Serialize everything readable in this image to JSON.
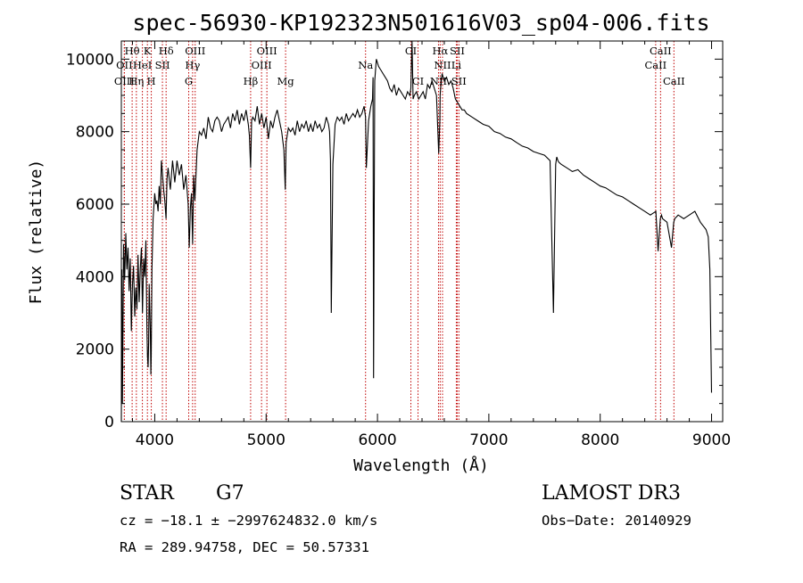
{
  "chart_data": {
    "type": "line",
    "title": "spec-56930-KP192323N501616V03_sp04-006.fits",
    "xlabel": "Wavelength (Å)",
    "ylabel": "Flux (relative)",
    "xlim": [
      3700,
      9100
    ],
    "ylim": [
      0,
      10500
    ],
    "xticks": [
      4000,
      5000,
      6000,
      7000,
      8000,
      9000
    ],
    "yticks": [
      0,
      2000,
      4000,
      6000,
      8000,
      10000
    ],
    "grid": false,
    "series": [
      {
        "x": [
          3700,
          3705,
          3710,
          3715,
          3720,
          3730,
          3740,
          3750,
          3760,
          3770,
          3780,
          3790,
          3800,
          3810,
          3820,
          3830,
          3840,
          3850,
          3860,
          3870,
          3880,
          3890,
          3900,
          3910,
          3920,
          3930,
          3935,
          3940,
          3945,
          3950,
          3960,
          3965,
          3968,
          3975,
          3985,
          4000,
          4010,
          4020,
          4030,
          4040,
          4050,
          4060,
          4070,
          4080,
          4090,
          4101,
          4110,
          4120,
          4140,
          4160,
          4180,
          4200,
          4220,
          4240,
          4260,
          4280,
          4300,
          4310,
          4320,
          4330,
          4340,
          4350,
          4360,
          4380,
          4400,
          4420,
          4440,
          4460,
          4480,
          4500,
          4520,
          4540,
          4560,
          4580,
          4600,
          4620,
          4640,
          4660,
          4680,
          4700,
          4720,
          4740,
          4760,
          4780,
          4800,
          4820,
          4840,
          4850,
          4861,
          4870,
          4880,
          4900,
          4920,
          4940,
          4960,
          4980,
          5000,
          5020,
          5040,
          5060,
          5080,
          5100,
          5120,
          5140,
          5160,
          5172,
          5180,
          5200,
          5220,
          5240,
          5260,
          5280,
          5300,
          5320,
          5340,
          5360,
          5380,
          5400,
          5420,
          5440,
          5460,
          5480,
          5500,
          5520,
          5540,
          5560,
          5570,
          5578,
          5585,
          5600,
          5620,
          5640,
          5660,
          5680,
          5700,
          5720,
          5740,
          5760,
          5780,
          5800,
          5820,
          5840,
          5860,
          5880,
          5893,
          5900,
          5920,
          5940,
          5955,
          5960,
          5965,
          5975,
          5990,
          6010,
          6030,
          6050,
          6070,
          6090,
          6110,
          6130,
          6150,
          6170,
          6190,
          6210,
          6230,
          6250,
          6270,
          6290,
          6300,
          6310,
          6320,
          6330,
          6350,
          6370,
          6390,
          6410,
          6430,
          6450,
          6470,
          6490,
          6510,
          6530,
          6550,
          6560,
          6563,
          6570,
          6580,
          6600,
          6620,
          6640,
          6660,
          6680,
          6700,
          6720,
          6740,
          6760,
          6780,
          6800,
          6850,
          6900,
          6950,
          7000,
          7050,
          7100,
          7150,
          7200,
          7250,
          7300,
          7350,
          7400,
          7450,
          7500,
          7550,
          7580,
          7600,
          7610,
          7620,
          7630,
          7650,
          7700,
          7750,
          7800,
          7850,
          7900,
          7950,
          8000,
          8050,
          8100,
          8150,
          8200,
          8250,
          8300,
          8350,
          8400,
          8450,
          8500,
          8520,
          8540,
          8550,
          8560,
          8600,
          8640,
          8660,
          8670,
          8700,
          8750,
          8800,
          8850,
          8900,
          8950,
          8970,
          8985,
          9000
        ],
        "values": [
          0,
          4200,
          500,
          2800,
          4900,
          3900,
          5200,
          4200,
          4800,
          3600,
          4500,
          2500,
          3800,
          4300,
          2900,
          3700,
          3100,
          4600,
          3300,
          4200,
          4800,
          3000,
          4500,
          4000,
          5000,
          2500,
          1800,
          1500,
          2200,
          3800,
          2500,
          1300,
          1800,
          4200,
          5600,
          6300,
          6000,
          6100,
          5800,
          6500,
          6000,
          7200,
          6800,
          6400,
          6100,
          5600,
          6700,
          7000,
          6400,
          7200,
          6600,
          7200,
          6800,
          7100,
          6400,
          6800,
          6000,
          4800,
          5900,
          6300,
          4900,
          6800,
          6100,
          7500,
          8000,
          7900,
          8100,
          7800,
          8400,
          8100,
          8000,
          8300,
          8400,
          8300,
          8000,
          8200,
          8300,
          8400,
          8100,
          8500,
          8300,
          8600,
          8200,
          8500,
          8300,
          8600,
          8200,
          7900,
          7000,
          8300,
          8400,
          8300,
          8700,
          8200,
          8500,
          8100,
          8400,
          7800,
          8300,
          8100,
          8400,
          8600,
          8300,
          8000,
          7500,
          6400,
          7700,
          8100,
          8000,
          8100,
          7900,
          8300,
          8000,
          8200,
          8100,
          8300,
          8000,
          8200,
          8000,
          8300,
          8100,
          8200,
          8000,
          8100,
          8400,
          8200,
          8000,
          7200,
          3000,
          7100,
          8200,
          8400,
          8300,
          8400,
          8200,
          8500,
          8300,
          8400,
          8500,
          8400,
          8600,
          8400,
          8500,
          8700,
          8400,
          7000,
          8300,
          8700,
          8900,
          9500,
          1200,
          9400,
          10000,
          9800,
          9700,
          9600,
          9500,
          9400,
          9200,
          9100,
          9300,
          9000,
          9200,
          9100,
          9000,
          8900,
          9100,
          9000,
          9200,
          10500,
          8900,
          9000,
          9100,
          8900,
          9000,
          9100,
          8900,
          9300,
          9200,
          9400,
          9200,
          9000,
          7400,
          8300,
          9000,
          9300,
          9600,
          9400,
          9500,
          9300,
          9400,
          9200,
          8900,
          8800,
          8700,
          8600,
          8600,
          8500,
          8400,
          8300,
          8200,
          8150,
          8000,
          7950,
          7850,
          7800,
          7700,
          7600,
          7550,
          7450,
          7400,
          7350,
          7200,
          3000,
          7100,
          7300,
          7200,
          7150,
          7100,
          7000,
          6900,
          6950,
          6800,
          6700,
          6600,
          6500,
          6450,
          6350,
          6250,
          6200,
          6100,
          6000,
          5900,
          5800,
          5700,
          5800,
          4700,
          5600,
          5700,
          5600,
          5500,
          4800,
          5500,
          5600,
          5700,
          5600,
          5700,
          5800,
          5500,
          5300,
          5100,
          4200,
          800
        ]
      }
    ],
    "lines": [
      {
        "name": "Hθ",
        "x": 3797,
        "row": 0
      },
      {
        "name": "K",
        "x": 3934,
        "row": 0
      },
      {
        "name": "Hδ",
        "x": 4102,
        "row": 0
      },
      {
        "name": "OIII",
        "x": 4363,
        "row": 0
      },
      {
        "name": "OIII",
        "x": 5007,
        "row": 0
      },
      {
        "name": "CI",
        "x": 6300,
        "row": 0
      },
      {
        "name": "Hα",
        "x": 6563,
        "row": 0
      },
      {
        "name": "SII",
        "x": 6716,
        "row": 0
      },
      {
        "name": "CaII",
        "x": 8542,
        "row": 0
      },
      {
        "name": "OII",
        "x": 3727,
        "row": 1
      },
      {
        "name": "HeI",
        "x": 3889,
        "row": 1
      },
      {
        "name": "SII",
        "x": 4069,
        "row": 1
      },
      {
        "name": "Hγ",
        "x": 4340,
        "row": 1
      },
      {
        "name": "OIII",
        "x": 4959,
        "row": 1
      },
      {
        "name": "Na",
        "x": 5893,
        "row": 1
      },
      {
        "name": "NII",
        "x": 6584,
        "row": 1
      },
      {
        "name": "Li",
        "x": 6708,
        "row": 1
      },
      {
        "name": "CaII",
        "x": 8498,
        "row": 1
      },
      {
        "name": "OIII",
        "x": 3727,
        "row": 2
      },
      {
        "name": "Hη",
        "x": 3835,
        "row": 2
      },
      {
        "name": "H",
        "x": 3969,
        "row": 2
      },
      {
        "name": "G",
        "x": 4305,
        "row": 2
      },
      {
        "name": "Hβ",
        "x": 4861,
        "row": 2
      },
      {
        "name": "Mg",
        "x": 5175,
        "row": 2
      },
      {
        "name": "CI",
        "x": 6364,
        "row": 2
      },
      {
        "name": "NII",
        "x": 6548,
        "row": 2
      },
      {
        "name": "SII",
        "x": 6731,
        "row": 2
      },
      {
        "name": "CaII",
        "x": 8662,
        "row": 2
      }
    ]
  },
  "info": {
    "class": "STAR",
    "subclass": "G7",
    "survey": "LAMOST DR3",
    "cz": "cz = −18.1 ± −2997624832.0 km/s",
    "obsdate": "Obs−Date: 20140929",
    "radec": "RA = 289.94758, DEC =  50.57331"
  }
}
